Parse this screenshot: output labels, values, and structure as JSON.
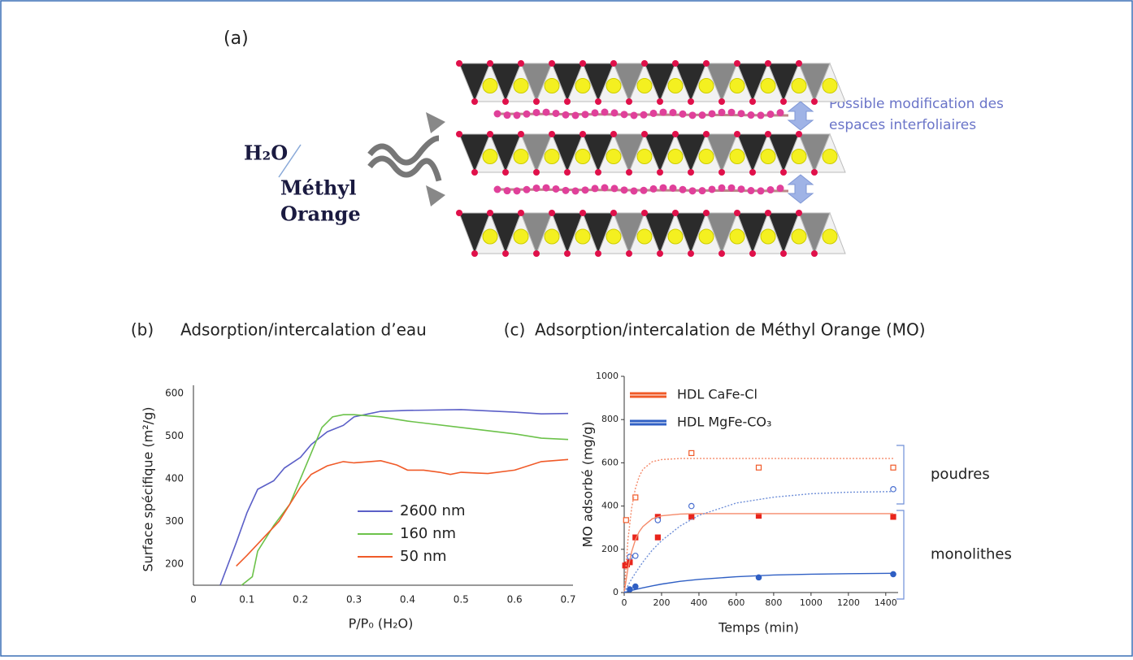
{
  "panel_a": {
    "label": "(a)",
    "molecule_1": "H₂O",
    "molecule_2_lines": [
      "Méthyl",
      "Orange"
    ],
    "annotation_lines": [
      "Possible modification des",
      "espaces interfoliaires"
    ]
  },
  "chart_data": [
    {
      "type": "line",
      "label": "(b)",
      "title": "Adsorption/intercalation d’eau",
      "x_label": "P/P₀ (H₂O)",
      "y_label": "Surface spécifique (m²/g)",
      "xlim": [
        0,
        0.7
      ],
      "xticks": [
        0,
        0.1,
        0.2,
        0.3,
        0.4,
        0.5,
        0.6,
        0.7
      ],
      "ylim": [
        150,
        600
      ],
      "yticks": [
        200,
        300,
        400,
        500,
        600
      ],
      "series": [
        {
          "name": "2600 nm",
          "color": "#5b5fc7",
          "x": [
            0.05,
            0.08,
            0.1,
            0.12,
            0.15,
            0.17,
            0.2,
            0.22,
            0.25,
            0.28,
            0.3,
            0.35,
            0.4,
            0.5,
            0.6,
            0.65,
            0.7
          ],
          "values": [
            150,
            250,
            320,
            375,
            395,
            425,
            450,
            480,
            510,
            525,
            545,
            558,
            560,
            562,
            556,
            552,
            553
          ]
        },
        {
          "name": "160 nm",
          "color": "#6cc24a",
          "x": [
            0.09,
            0.11,
            0.12,
            0.15,
            0.18,
            0.2,
            0.22,
            0.24,
            0.26,
            0.28,
            0.3,
            0.35,
            0.4,
            0.5,
            0.6,
            0.65,
            0.7
          ],
          "values": [
            150,
            170,
            230,
            290,
            340,
            400,
            460,
            520,
            545,
            550,
            550,
            545,
            535,
            520,
            505,
            495,
            492
          ]
        },
        {
          "name": "50 nm",
          "color": "#f05a28",
          "x": [
            0.08,
            0.1,
            0.13,
            0.16,
            0.2,
            0.22,
            0.25,
            0.28,
            0.3,
            0.33,
            0.35,
            0.38,
            0.4,
            0.43,
            0.46,
            0.48,
            0.5,
            0.55,
            0.6,
            0.65,
            0.7
          ],
          "values": [
            195,
            220,
            260,
            300,
            380,
            410,
            430,
            440,
            437,
            440,
            442,
            432,
            420,
            420,
            415,
            410,
            415,
            412,
            420,
            440,
            445
          ]
        }
      ]
    },
    {
      "type": "scatter",
      "label": "(c)",
      "title": "Adsorption/intercalation de Méthyl Orange (MO)",
      "x_label": "Temps (min)",
      "y_label": "MO adsorbé (mg/g)",
      "xlim": [
        0,
        1440
      ],
      "xticks": [
        0,
        200,
        400,
        600,
        800,
        1000,
        1200,
        1400
      ],
      "ylim": [
        0,
        1000
      ],
      "yticks": [
        0,
        200,
        400,
        600,
        800,
        1000
      ],
      "legend": [
        {
          "name": "HDL CaFe-Cl",
          "color": "#f05a28"
        },
        {
          "name": "HDL MgFe-CO₃",
          "color": "#2f5fc4"
        }
      ],
      "annotations": [
        "poudres",
        "monolithes"
      ],
      "series": [
        {
          "color": "#f05a28",
          "marker": "open-square",
          "x": [
            10,
            60,
            360,
            720,
            1440
          ],
          "values": [
            335,
            440,
            645,
            578,
            578
          ]
        },
        {
          "color": "#e8251c",
          "marker": "filled-square",
          "x": [
            5,
            15,
            30,
            60,
            180,
            180,
            360,
            720,
            1440
          ],
          "values": [
            125,
            130,
            140,
            255,
            255,
            350,
            350,
            355,
            350
          ]
        },
        {
          "color": "#4a6fd0",
          "marker": "open-circle",
          "x": [
            30,
            60,
            180,
            360,
            1440
          ],
          "values": [
            165,
            170,
            335,
            400,
            478
          ]
        },
        {
          "color": "#2f5fc4",
          "marker": "filled-circle",
          "x": [
            30,
            60,
            720,
            1440
          ],
          "values": [
            15,
            28,
            70,
            85
          ]
        },
        {
          "color": "#f58a6a",
          "marker": "dotted-line",
          "x": [
            0,
            20,
            40,
            60,
            80,
            100,
            150,
            200,
            300,
            400,
            600,
            800,
            1000,
            1200,
            1440
          ],
          "values": [
            0,
            244,
            392,
            482,
            536,
            570,
            605,
            615,
            620,
            620,
            620,
            620,
            620,
            620,
            620
          ]
        },
        {
          "color": "#f58a6a",
          "marker": "solid-line",
          "x": [
            0,
            20,
            40,
            60,
            80,
            100,
            150,
            200,
            300,
            400,
            600,
            800,
            1000,
            1200,
            1440
          ],
          "values": [
            0,
            112,
            189,
            244,
            281,
            305,
            341,
            355,
            363,
            365,
            365,
            365,
            365,
            365,
            365
          ]
        },
        {
          "color": "#6f8fd8",
          "marker": "dotted-line",
          "x": [
            0,
            20,
            40,
            60,
            80,
            100,
            150,
            200,
            300,
            400,
            600,
            800,
            1000,
            1200,
            1440
          ],
          "values": [
            0,
            32,
            63,
            90,
            116,
            141,
            196,
            240,
            308,
            357,
            414,
            441,
            457,
            464,
            467
          ]
        },
        {
          "color": "#2f5fc4",
          "marker": "solid-line",
          "x": [
            0,
            20,
            40,
            60,
            80,
            100,
            150,
            200,
            300,
            400,
            600,
            800,
            1000,
            1200,
            1440
          ],
          "values": [
            0,
            5,
            10,
            14,
            18,
            22,
            31,
            39,
            52,
            61,
            73,
            81,
            85,
            87,
            89
          ]
        }
      ]
    }
  ]
}
